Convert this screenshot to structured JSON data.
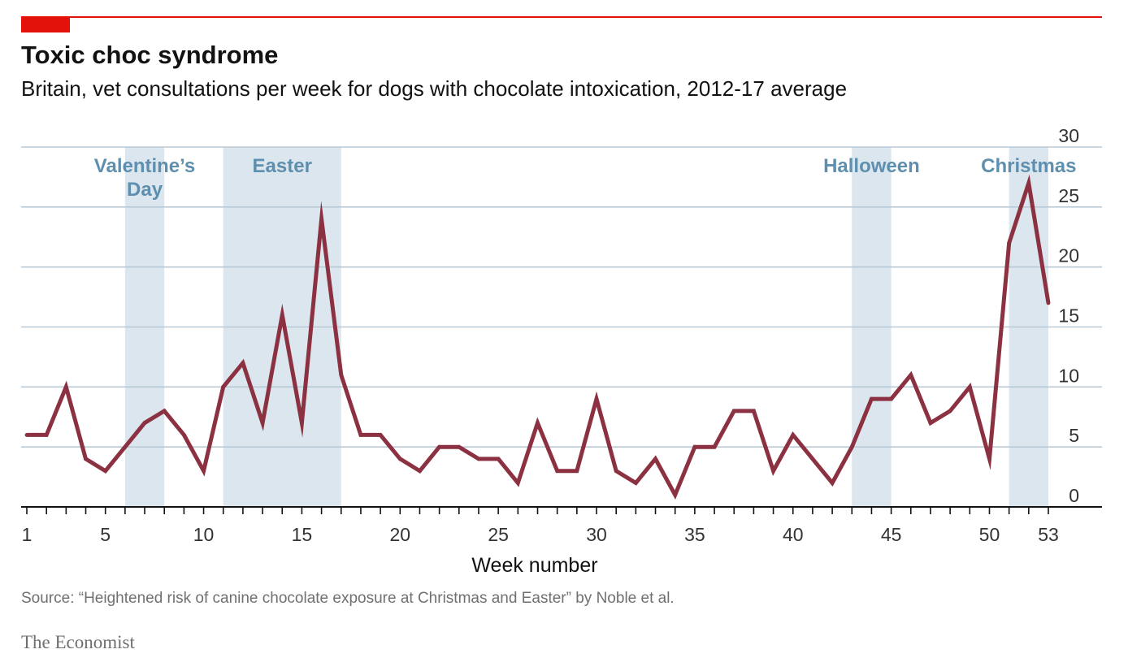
{
  "header": {
    "title": "Toxic choc syndrome",
    "subtitle": "Britain, vet consultations per week for dogs with chocolate intoxication, 2012-17 average"
  },
  "footer": {
    "source": "Source: “Heightened risk of canine chocolate exposure at Christmas and Easter” by Noble et al.",
    "brand": "The Economist"
  },
  "colors": {
    "accent": "#e3120b",
    "line": "#8b3141",
    "band": "#dbe6ee",
    "band_label": "#5e8fae",
    "grid": "#b9c9d6"
  },
  "chart_data": {
    "type": "line",
    "xlabel": "Week number",
    "ylabel": "",
    "xlim": [
      1,
      53
    ],
    "ylim": [
      0,
      30
    ],
    "y_ticks": [
      0,
      5,
      10,
      15,
      20,
      25,
      30
    ],
    "x_tick_labels": [
      1,
      5,
      10,
      15,
      20,
      25,
      30,
      35,
      40,
      45,
      50,
      53
    ],
    "y_axis_side": "right",
    "grid": true,
    "series": [
      {
        "x": [
          1,
          2,
          3,
          4,
          5,
          6,
          7,
          8,
          9,
          10,
          11,
          12,
          13,
          14,
          15,
          16,
          17,
          18,
          19,
          20,
          21,
          22,
          23,
          24,
          25,
          26,
          27,
          28,
          29,
          30,
          31,
          32,
          33,
          34,
          35,
          36,
          37,
          38,
          39,
          40,
          41,
          42,
          43,
          44,
          45,
          46,
          47,
          48,
          49,
          50,
          51,
          52,
          53
        ],
        "values": [
          6,
          6,
          10,
          4,
          3,
          5,
          7,
          8,
          6,
          3,
          10,
          12,
          7,
          16,
          7,
          24,
          11,
          6,
          6,
          4,
          3,
          5,
          5,
          4,
          4,
          2,
          7,
          3,
          3,
          9,
          3,
          2,
          4,
          1,
          5,
          5,
          8,
          8,
          3,
          6,
          4,
          2,
          5,
          9,
          9,
          11,
          7,
          8,
          10,
          4,
          22,
          27,
          17
        ]
      }
    ],
    "bands": [
      {
        "label_lines": [
          "Valentine’s",
          "Day"
        ],
        "start": 6,
        "end": 8
      },
      {
        "label_lines": [
          "Easter"
        ],
        "start": 11,
        "end": 17
      },
      {
        "label_lines": [
          "Halloween"
        ],
        "start": 43,
        "end": 45
      },
      {
        "label_lines": [
          "Christmas"
        ],
        "start": 51,
        "end": 53
      }
    ]
  }
}
